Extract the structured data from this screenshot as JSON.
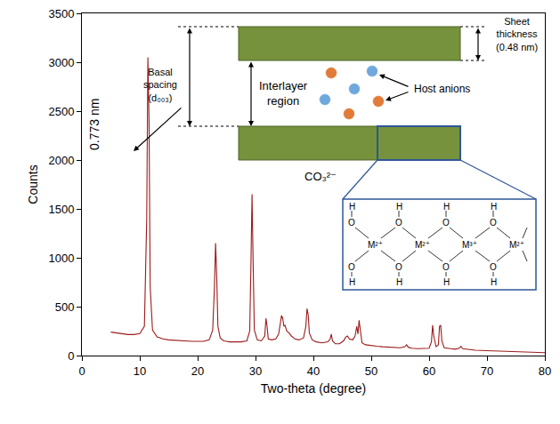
{
  "chart_data": {
    "type": "line",
    "x_label": "Two-theta (degree)",
    "y_label": "Counts",
    "color": "#9b1b1b",
    "x": [
      5,
      6,
      7,
      8,
      9,
      10,
      10.8,
      11.2,
      11.4,
      11.6,
      11.8,
      12.2,
      13,
      14,
      15,
      16,
      17,
      18,
      19,
      20,
      21,
      22,
      22.6,
      22.9,
      23.1,
      23.3,
      23.5,
      23.9,
      24.5,
      25.5,
      26.5,
      27.5,
      28.5,
      29.0,
      29.2,
      29.4,
      29.6,
      29.8,
      30.3,
      31,
      31.6,
      31.8,
      32.0,
      32.2,
      32.8,
      33.5,
      34.0,
      34.3,
      34.5,
      34.7,
      34.9,
      35.1,
      35.4,
      35.8,
      36.2,
      36.8,
      37.5,
      38.3,
      38.7,
      38.9,
      39.1,
      39.3,
      39.8,
      40.5,
      41.5,
      42.5,
      42.9,
      43.1,
      43.3,
      43.8,
      44.5,
      45.2,
      45.6,
      45.9,
      46.2,
      46.8,
      47.2,
      47.5,
      47.7,
      47.9,
      48.1,
      48.4,
      49,
      50,
      51,
      52,
      53,
      54,
      55,
      55.8,
      56.1,
      56.4,
      57,
      58,
      59,
      60,
      60.4,
      60.6,
      60.8,
      61.2,
      61.6,
      61.8,
      62.0,
      62.2,
      62.6,
      63.5,
      64.5,
      65.2,
      65.5,
      65.8,
      67,
      68,
      70,
      72,
      74,
      76,
      78,
      80
    ],
    "values": [
      240,
      230,
      220,
      215,
      215,
      225,
      300,
      1400,
      3050,
      2400,
      700,
      260,
      190,
      170,
      160,
      155,
      150,
      150,
      145,
      145,
      145,
      160,
      260,
      700,
      1150,
      800,
      300,
      180,
      150,
      140,
      140,
      140,
      150,
      250,
      900,
      1650,
      900,
      260,
      160,
      150,
      200,
      380,
      300,
      170,
      160,
      170,
      220,
      330,
      410,
      380,
      300,
      310,
      250,
      230,
      200,
      170,
      160,
      180,
      300,
      480,
      420,
      230,
      160,
      140,
      130,
      140,
      170,
      220,
      150,
      120,
      120,
      150,
      190,
      200,
      170,
      160,
      200,
      300,
      220,
      360,
      260,
      130,
      110,
      100,
      95,
      90,
      85,
      80,
      80,
      90,
      110,
      85,
      75,
      70,
      70,
      75,
      140,
      310,
      200,
      90,
      110,
      300,
      310,
      150,
      80,
      70,
      65,
      75,
      95,
      70,
      60,
      55,
      50,
      45,
      40,
      40,
      35,
      30
    ],
    "xlim": [
      0,
      80
    ],
    "xticks": [
      0,
      10,
      20,
      30,
      40,
      50,
      60,
      70,
      80
    ],
    "ylim": [
      0,
      3500
    ],
    "yticks": [
      0,
      500,
      1000,
      1500,
      2000,
      2500,
      3000,
      3500
    ],
    "grid": false,
    "annotations": [
      "0.773 nm",
      "CO₃²⁻"
    ]
  },
  "diagram": {
    "basal_spacing": [
      "Basal",
      "spacing",
      "(d₀₀₃)"
    ],
    "interlayer": [
      "Interlayer",
      "region"
    ],
    "sheet_thickness": [
      "Sheet",
      "thickness",
      "(0.48 nm)"
    ],
    "host_anions": "Host anions",
    "hydroxyl": [
      "H",
      "O"
    ],
    "metals": [
      "M²⁺",
      "M²⁺",
      "M³⁺",
      "M²⁺"
    ]
  }
}
